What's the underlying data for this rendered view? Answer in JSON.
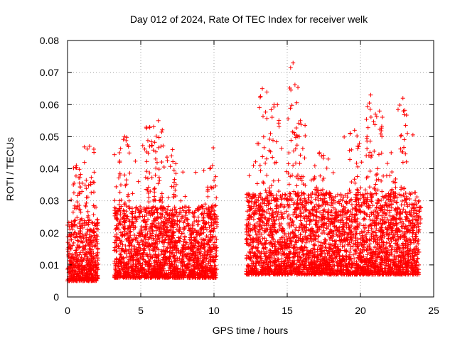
{
  "chart_data": {
    "type": "scatter",
    "title": "Day 012 of 2024, Rate Of TEC Index for receiver welk",
    "xlabel": "GPS time / hours",
    "ylabel": "ROTI / TECUs",
    "xlim": [
      0,
      25
    ],
    "ylim": [
      0,
      0.08
    ],
    "xticks": [
      0,
      5,
      10,
      15,
      20,
      25
    ],
    "yticks": [
      0,
      0.01,
      0.02,
      0.03,
      0.04,
      0.05,
      0.06,
      0.07,
      0.08
    ],
    "xtick_labels": [
      "0",
      "5",
      "10",
      "15",
      "20",
      "25"
    ],
    "ytick_labels": [
      "0",
      "0.01",
      "0.02",
      "0.03",
      "0.04",
      "0.05",
      "0.06",
      "0.07",
      "0.08"
    ],
    "grid": true,
    "marker": "+",
    "color": "#ff0000",
    "series": [
      {
        "name": "ROTI",
        "description": "Points cluster mostly between 0.005 and 0.025 TECUs with spikes; data gaps near 2.1-3.2 h and 10.2-12.2 h",
        "segments": [
          {
            "x_start": 0.0,
            "x_end": 2.1,
            "base": 0.01,
            "spread": 0.012
          },
          {
            "x_start": 3.2,
            "x_end": 10.2,
            "base": 0.011,
            "spread": 0.014
          },
          {
            "x_start": 12.2,
            "x_end": 24.0,
            "base": 0.012,
            "spread": 0.016
          }
        ],
        "peaks": [
          {
            "x": 0.6,
            "y": 0.041
          },
          {
            "x": 1.5,
            "y": 0.047
          },
          {
            "x": 3.9,
            "y": 0.05
          },
          {
            "x": 5.6,
            "y": 0.053
          },
          {
            "x": 6.2,
            "y": 0.055
          },
          {
            "x": 7.1,
            "y": 0.044
          },
          {
            "x": 9.9,
            "y": 0.041
          },
          {
            "x": 13.3,
            "y": 0.065
          },
          {
            "x": 14.1,
            "y": 0.06
          },
          {
            "x": 15.4,
            "y": 0.073
          },
          {
            "x": 15.9,
            "y": 0.055
          },
          {
            "x": 17.2,
            "y": 0.045
          },
          {
            "x": 19.6,
            "y": 0.052
          },
          {
            "x": 20.7,
            "y": 0.063
          },
          {
            "x": 21.3,
            "y": 0.058
          },
          {
            "x": 22.1,
            "y": 0.045
          },
          {
            "x": 22.9,
            "y": 0.062
          },
          {
            "x": 23.8,
            "y": 0.029
          }
        ]
      }
    ]
  }
}
